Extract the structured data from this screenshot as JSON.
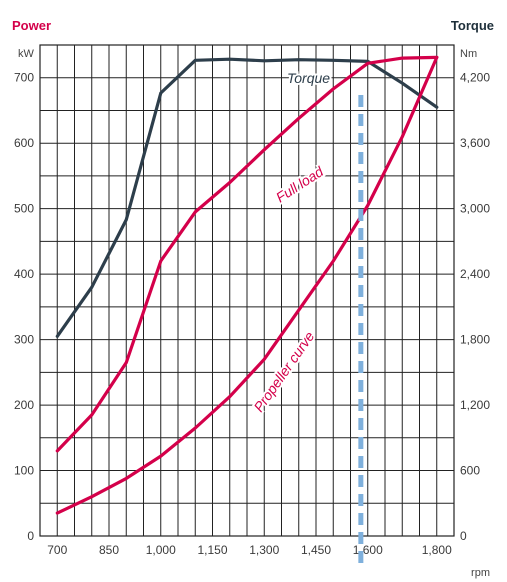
{
  "chart_data": {
    "type": "line",
    "title_left": "Power",
    "title_right": "Torque",
    "ylabel_left": "kW",
    "ylabel_right": "Nm",
    "xlabel": "rpm",
    "x_ticks": [
      700,
      850,
      1000,
      1150,
      1300,
      1450,
      1600,
      1800
    ],
    "x_tick_labels": [
      "700",
      "850",
      "1,000",
      "1,150",
      "1,300",
      "1,450",
      "1,600",
      "1,800"
    ],
    "xlim": [
      650,
      1850
    ],
    "y_left_ticks": [
      0,
      100,
      200,
      300,
      400,
      500,
      600,
      700
    ],
    "y_left_tick_labels": [
      "0",
      "100",
      "200",
      "300",
      "400",
      "500",
      "600",
      "700"
    ],
    "ylim_left": [
      0,
      750
    ],
    "y_right_ticks": [
      0,
      600,
      1200,
      1800,
      2400,
      3000,
      3600,
      4200
    ],
    "y_right_tick_labels": [
      "0",
      "600",
      "1,200",
      "1,800",
      "2,400",
      "3,000",
      "3,600",
      "4,200"
    ],
    "ylim_right": [
      0,
      4500
    ],
    "grid": true,
    "colors": {
      "power": "#d4004a",
      "torque": "#2d3e4b",
      "marker": "#7fb0dc",
      "title_left": "#d4004a",
      "title_right": "#1e2f3a",
      "grid": "#222222"
    },
    "series": [
      {
        "name": "Torque",
        "axis": "right",
        "color": "#2d3e4b",
        "x": [
          700,
          800,
          900,
          1000,
          1100,
          1200,
          1300,
          1400,
          1500,
          1600,
          1700,
          1800
        ],
        "y": [
          1830,
          2280,
          2900,
          4060,
          4360,
          4370,
          4355,
          4365,
          4360,
          4350,
          4150,
          3930
        ]
      },
      {
        "name": "Full load",
        "axis": "left",
        "color": "#d4004a",
        "x": [
          700,
          800,
          900,
          1000,
          1100,
          1200,
          1300,
          1400,
          1500,
          1600,
          1700,
          1800
        ],
        "y": [
          130,
          185,
          265,
          420,
          495,
          540,
          590,
          638,
          683,
          722,
          730,
          731
        ]
      },
      {
        "name": "Propeller curve",
        "axis": "left",
        "color": "#d4004a",
        "x": [
          700,
          800,
          900,
          1000,
          1100,
          1200,
          1300,
          1400,
          1500,
          1600,
          1700,
          1800
        ],
        "y": [
          35,
          60,
          88,
          122,
          165,
          213,
          270,
          345,
          420,
          505,
          610,
          731
        ]
      }
    ],
    "marker_line": {
      "x": 1580,
      "style": "dashed"
    }
  }
}
